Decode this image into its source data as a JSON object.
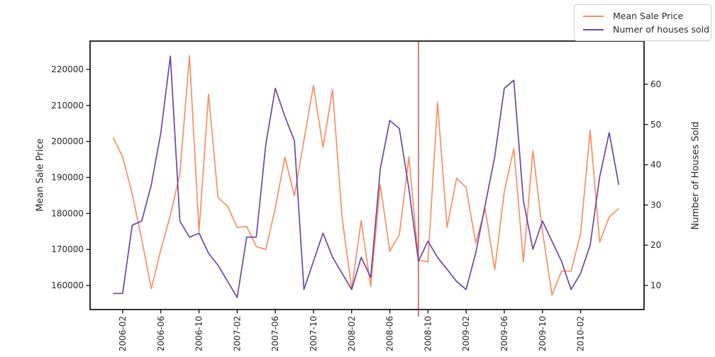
{
  "chart_data": {
    "type": "line",
    "months": [
      "2006-01",
      "2006-02",
      "2006-03",
      "2006-04",
      "2006-05",
      "2006-06",
      "2006-07",
      "2006-08",
      "2006-09",
      "2006-10",
      "2006-11",
      "2006-12",
      "2007-01",
      "2007-02",
      "2007-03",
      "2007-04",
      "2007-05",
      "2007-06",
      "2007-07",
      "2007-08",
      "2007-09",
      "2007-10",
      "2007-11",
      "2007-12",
      "2008-01",
      "2008-02",
      "2008-03",
      "2008-04",
      "2008-05",
      "2008-06",
      "2008-07",
      "2008-08",
      "2008-09",
      "2008-10",
      "2008-11",
      "2008-12",
      "2009-01",
      "2009-02",
      "2009-03",
      "2009-04",
      "2009-05",
      "2009-06",
      "2009-07",
      "2009-08",
      "2009-09",
      "2009-10",
      "2009-11",
      "2009-12",
      "2010-01",
      "2010-02",
      "2010-03",
      "2010-04",
      "2010-05",
      "2010-06"
    ],
    "series": [
      {
        "name": "Mean Sale Price",
        "axis": "left",
        "color": "#fc8d62",
        "values": [
          201100,
          195700,
          185400,
          172800,
          159100,
          170000,
          179500,
          191000,
          223800,
          175000,
          213100,
          184400,
          182000,
          176100,
          176400,
          170800,
          170000,
          181500,
          195600,
          184900,
          200300,
          215500,
          198400,
          214400,
          178800,
          159000,
          178000,
          159700,
          188000,
          169500,
          174100,
          195700,
          167000,
          166600,
          210800,
          176100,
          189800,
          187200,
          171800,
          181300,
          164400,
          186000,
          198000,
          166500,
          197400,
          175000,
          157300,
          164000,
          164000,
          174400,
          203100,
          172000,
          179000,
          181400
        ]
      },
      {
        "name": "Numer of houses sold",
        "axis": "right",
        "color": "#6b46a8",
        "values": [
          8,
          8,
          25,
          26,
          35,
          48,
          67,
          26,
          22,
          23,
          18,
          15,
          11,
          7,
          22,
          22,
          45,
          59,
          52,
          46,
          9,
          16,
          23,
          17,
          13,
          9,
          17,
          12,
          39,
          51,
          49,
          34,
          16,
          21,
          17,
          14,
          11,
          9,
          18,
          30,
          42,
          59,
          61,
          31,
          19,
          26,
          21,
          16,
          9,
          13,
          20,
          37,
          48,
          35
        ]
      }
    ],
    "left_axis": {
      "label": "Mean Sale Price",
      "ticks": [
        160000,
        170000,
        180000,
        190000,
        200000,
        210000,
        220000
      ],
      "min": 153312,
      "max": 227868
    },
    "right_axis": {
      "label": "Number of Houses  Sold",
      "ticks": [
        10,
        20,
        30,
        40,
        50,
        60
      ],
      "min": 4.01,
      "max": 70.74
    },
    "x_axis": {
      "tick_labels": [
        "2006-02",
        "2006-06",
        "2006-10",
        "2007-02",
        "2007-06",
        "2007-10",
        "2008-02",
        "2008-06",
        "2008-10",
        "2009-02",
        "2009-06",
        "2009-10",
        "2010-02"
      ],
      "rotation": 90
    },
    "vline": {
      "x": "2008-09",
      "color": "#c35b5b"
    },
    "legend": {
      "items": [
        {
          "label": "Mean Sale Price",
          "color": "#fc8d62"
        },
        {
          "label": "Numer of houses sold",
          "color": "#6b46a8"
        }
      ]
    },
    "layout": {
      "grid": false,
      "legend_position": "top-right",
      "spine_color": "#1a1a1a"
    }
  }
}
